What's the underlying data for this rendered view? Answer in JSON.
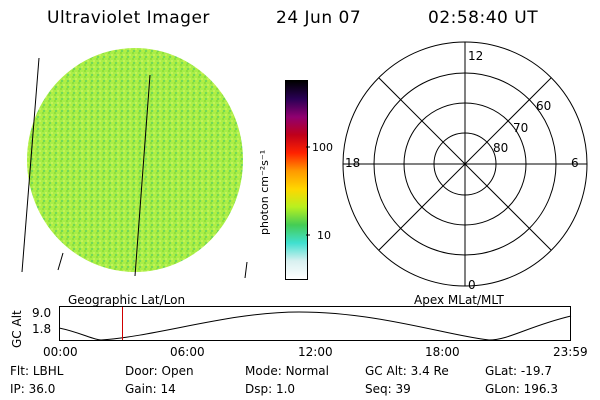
{
  "header": {
    "instrument": "Ultraviolet Imager",
    "date": "24 Jun 07",
    "time": "02:58:40 UT"
  },
  "colorbar": {
    "unit_label": "photon cm⁻²s⁻¹",
    "tick_labels": [
      "100",
      "10"
    ],
    "stops": [
      "#ffffff",
      "#d8f0f0",
      "#40e0d0",
      "#44cc55",
      "#b8f020",
      "#ffd700",
      "#ff9900",
      "#ff2200",
      "#c0001a",
      "#900070",
      "#2a0055",
      "#000000"
    ]
  },
  "polar_plot": {
    "mlt_labels": {
      "top": "12",
      "left": "18",
      "right": "6",
      "bottom": "0"
    },
    "lat_labels": [
      "60",
      "70",
      "80"
    ],
    "caption": "Apex MLat/MLT"
  },
  "image_panel": {
    "caption": "Geographic Lat/Lon",
    "fill_color": "#a8ee48"
  },
  "timeline": {
    "ylabel": "GC Alt",
    "yticks": [
      "9.0",
      "1.8"
    ],
    "xticks": [
      "00:00",
      "06:00",
      "12:00",
      "18:00",
      "23:59"
    ],
    "marker_color": "#d00000",
    "marker_time_fraction": 0.124
  },
  "status": {
    "row1": [
      {
        "key": "Flt:",
        "value": "LBHL"
      },
      {
        "key": "Door:",
        "value": "Open"
      },
      {
        "key": "Mode:",
        "value": "Normal"
      },
      {
        "key": "GC Alt:",
        "value": "3.4 Re"
      },
      {
        "key": "GLat:",
        "value": "-19.7"
      }
    ],
    "row2": [
      {
        "key": "IP:",
        "value": "36.0"
      },
      {
        "key": "Gain:",
        "value": "14"
      },
      {
        "key": "Dsp:",
        "value": "1.0"
      },
      {
        "key": "Seq:",
        "value": "39"
      },
      {
        "key": "GLon:",
        "value": "196.3"
      }
    ]
  }
}
